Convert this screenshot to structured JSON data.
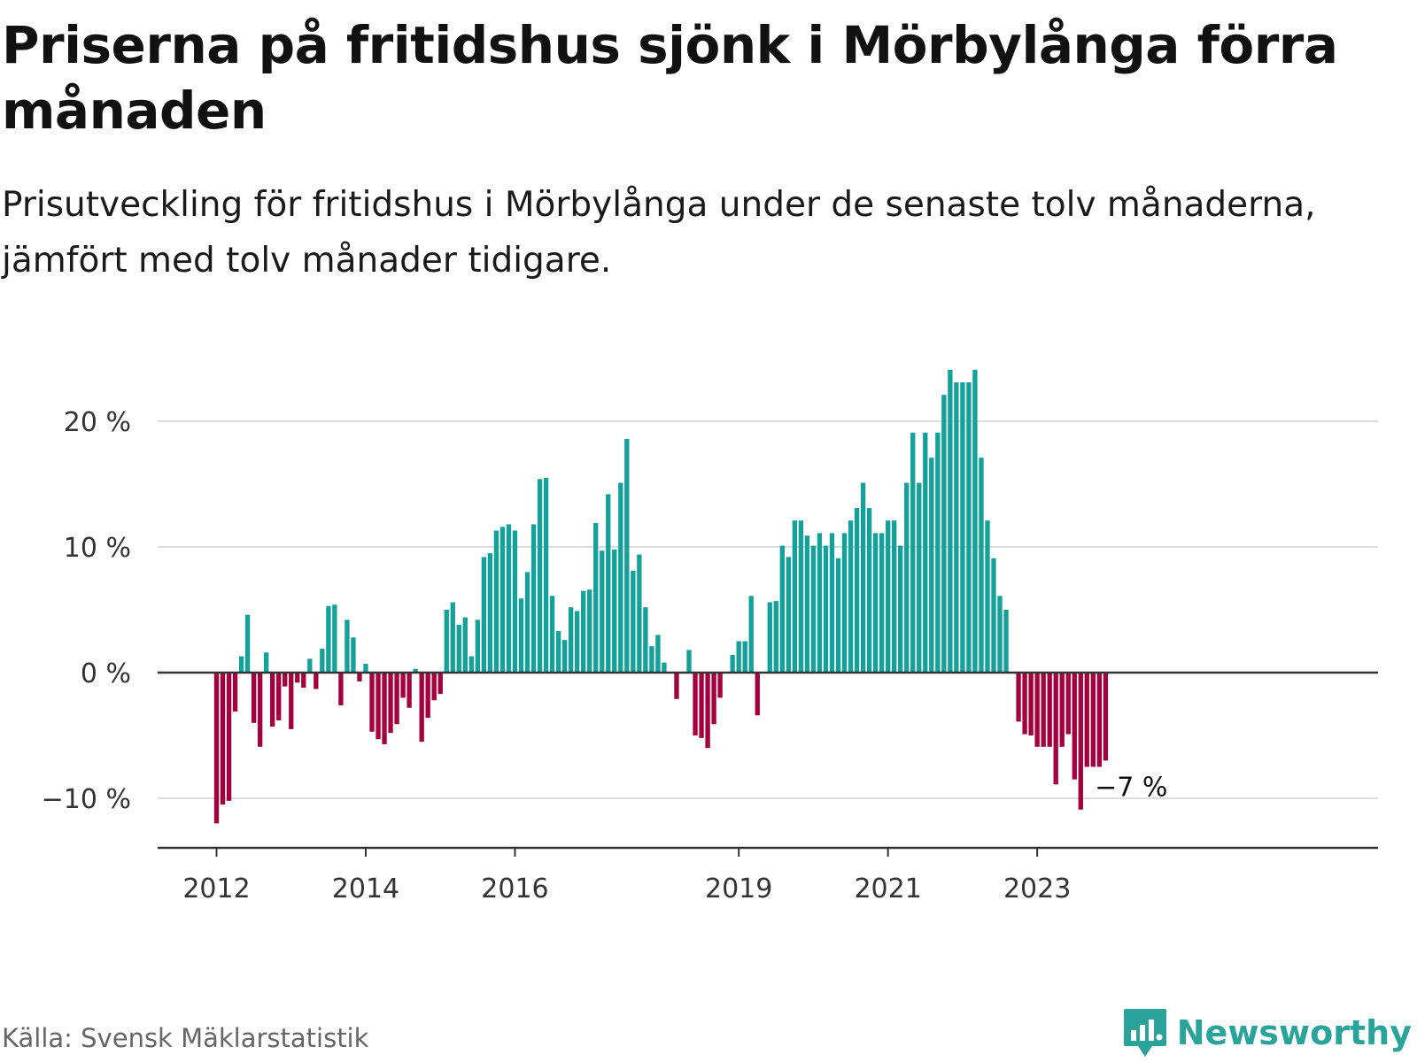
{
  "title": "Priserna på fritidshus sjönk i Mörbylånga förra månaden",
  "subtitle": "Prisutveckling för fritidshus i Mörbylånga under de senaste tolv månaderna, jämfört med tolv månader tidigare.",
  "source": "Källa: Svensk Mäklarstatistik",
  "brand": "Newsworthy",
  "colors": {
    "positive": "#13a199",
    "negative": "#a3003d",
    "zero_line": "#333333",
    "grid": "#dddddd",
    "brand": "#2aa39a"
  },
  "chart_data": {
    "type": "bar",
    "ylim": [
      -14,
      25
    ],
    "y_ticks": [
      20,
      10,
      0,
      -10
    ],
    "y_tick_labels": [
      "20 %",
      "10 %",
      "0 %",
      "−10 %"
    ],
    "x_start_year": 2012,
    "x_ticks": [
      2012,
      2014,
      2016,
      2019,
      2021,
      2023
    ],
    "x_tick_labels": [
      "2012",
      "2014",
      "2016",
      "2019",
      "2021",
      "2023"
    ],
    "end_label": "−7 %",
    "unit": "%",
    "grid": true,
    "values": [
      -12,
      -10.5,
      -10.2,
      -3.1,
      1.3,
      4.6,
      -4,
      -5.9,
      1.6,
      -4.3,
      -3.8,
      -1.1,
      -4.5,
      -0.8,
      -1.2,
      1.1,
      -1.3,
      1.9,
      5.3,
      5.4,
      -2.6,
      4.2,
      2.8,
      -0.7,
      0.7,
      -4.7,
      -5.3,
      -5.7,
      -4.8,
      -4.1,
      -2,
      -2.8,
      0.3,
      -5.5,
      -3.6,
      -2.2,
      -1.7,
      5,
      5.6,
      3.8,
      4.4,
      1.3,
      4.2,
      9.2,
      9.5,
      11.3,
      11.6,
      11.8,
      11.3,
      5.9,
      8,
      11.8,
      15.4,
      15.5,
      6.1,
      3.3,
      2.6,
      5.2,
      4.9,
      6.5,
      6.6,
      11.9,
      9.7,
      14.2,
      9.8,
      15.1,
      18.6,
      8.1,
      9.4,
      5.2,
      2.1,
      3,
      0.8,
      0,
      -2.1,
      0,
      1.8,
      -5,
      -5.2,
      -6,
      -4.1,
      -2,
      0,
      1.4,
      2.5,
      2.5,
      6.1,
      -3.4,
      0,
      5.6,
      5.7,
      10.1,
      9.2,
      12.1,
      12.1,
      10.9,
      10.1,
      11.1,
      10.1,
      11.1,
      9.1,
      11.1,
      12.1,
      13.1,
      15.1,
      13.1,
      11.1,
      11.1,
      12.1,
      12.1,
      10.1,
      15.1,
      19.1,
      15.1,
      19.1,
      17.1,
      19.1,
      22.1,
      24.1,
      23.1,
      23.1,
      23.1,
      24.1,
      17.1,
      12.1,
      9.1,
      6.1,
      5,
      0,
      -3.9,
      -4.9,
      -5,
      -5.9,
      -5.9,
      -5.9,
      -8.9,
      -5.9,
      -4.9,
      -8.5,
      -10.9,
      -7.5,
      -7.5,
      -7.5,
      -7
    ]
  }
}
